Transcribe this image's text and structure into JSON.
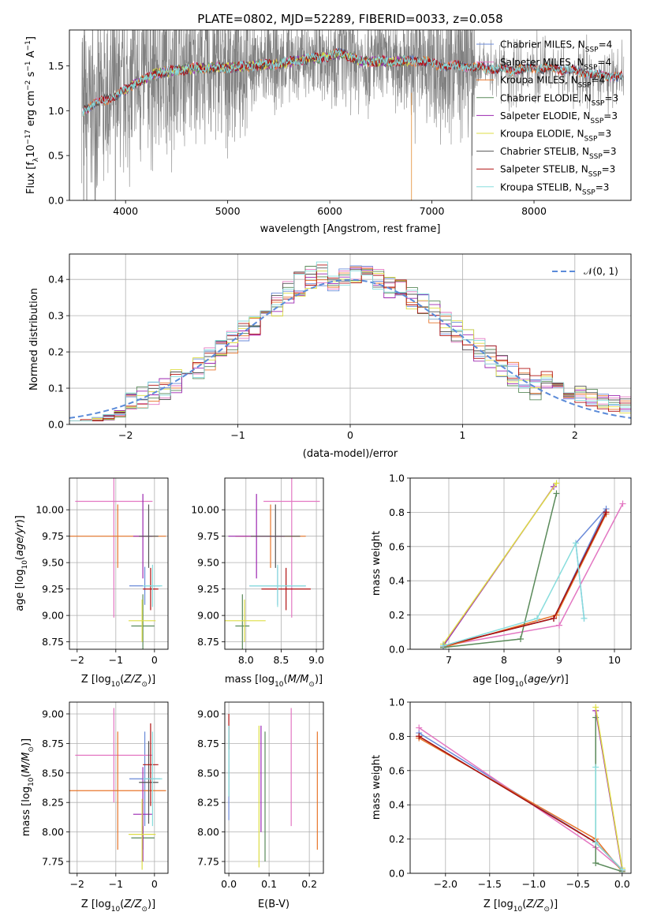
{
  "title": "PLATE=0802, MJD=52289, FIBERID=0033, z=0.058",
  "colors": {
    "Chabrier MILES": "#6a8ad8",
    "Salpeter MILES": "#e377c2",
    "Kroupa MILES": "#e8762b",
    "Chabrier ELODIE": "#5a8a5a",
    "Salpeter ELODIE": "#9c27b0",
    "Kroupa ELODIE": "#dddd44",
    "Chabrier STELIB": "#555555",
    "Salpeter STELIB": "#b01010",
    "Kroupa STELIB": "#88dddd",
    "data": "#808080",
    "gauss": "#5b8bd9"
  },
  "legend_entries": [
    "Chabrier MILES, N_SSP=4",
    "Salpeter MILES, N_SSP=4",
    "Kroupa MILES, N_SSP=4",
    "Chabrier ELODIE, N_SSP=3",
    "Salpeter ELODIE, N_SSP=3",
    "Kroupa ELODIE, N_SSP=3",
    "Chabrier STELIB, N_SSP=3",
    "Salpeter STELIB, N_SSP=3",
    "Kroupa STELIB, N_SSP=3"
  ],
  "chart_data": [
    {
      "id": "spectrum",
      "type": "line",
      "title": "PLATE=0802, MJD=52289, FIBERID=0033, z=0.058",
      "xlabel": "wavelength [Angstrom, rest frame]",
      "ylabel": "Flux [f_λ 10^-17 erg cm^-2 s^-1 A^-1]",
      "xlim": [
        3450,
        8950
      ],
      "ylim": [
        0,
        1.9
      ],
      "xticks": [
        4000,
        5000,
        6000,
        7000,
        8000
      ],
      "yticks": [
        0.0,
        0.5,
        1.0,
        1.5
      ],
      "legend": "right",
      "model_continuum": [
        [
          3580,
          1.0
        ],
        [
          3700,
          1.08
        ],
        [
          3800,
          1.12
        ],
        [
          3950,
          1.2
        ],
        [
          4100,
          1.3
        ],
        [
          4300,
          1.42
        ],
        [
          4500,
          1.45
        ],
        [
          4700,
          1.48
        ],
        [
          5000,
          1.48
        ],
        [
          5200,
          1.5
        ],
        [
          5500,
          1.52
        ],
        [
          5800,
          1.58
        ],
        [
          6000,
          1.6
        ],
        [
          6100,
          1.65
        ],
        [
          6300,
          1.55
        ],
        [
          6600,
          1.55
        ],
        [
          6900,
          1.56
        ],
        [
          7100,
          1.5
        ],
        [
          7300,
          1.5
        ],
        [
          7500,
          1.48
        ],
        [
          7800,
          1.45
        ],
        [
          8000,
          1.48
        ],
        [
          8300,
          1.46
        ],
        [
          8600,
          1.4
        ],
        [
          8800,
          1.38
        ]
      ]
    },
    {
      "id": "residuals",
      "type": "line",
      "xlabel": "(data-model)/error",
      "ylabel": "Normed distribution",
      "xlim": [
        -2.5,
        2.5
      ],
      "ylim": [
        0,
        0.47
      ],
      "xticks": [
        -2,
        -1,
        0,
        1,
        2
      ],
      "yticks": [
        0.0,
        0.1,
        0.2,
        0.3,
        0.4
      ],
      "grid": true,
      "legend": "top-right",
      "legend_label": "N(0,1)"
    },
    {
      "id": "age-vs-Z",
      "type": "scatter",
      "xlabel": "Z [log10(Z/Z⊙)]",
      "ylabel": "age  [log10(age/yr)]",
      "xlim": [
        -2.2,
        0.35
      ],
      "ylim": [
        8.68,
        10.3
      ],
      "xticks": [
        -2,
        -1,
        0
      ],
      "yticks": [
        8.75,
        9.0,
        9.25,
        9.5,
        9.75,
        10.0
      ],
      "grid": true
    },
    {
      "id": "age-vs-mass",
      "type": "scatter",
      "xlabel": "mass [log10(M/M⊙)]",
      "xlim": [
        7.7,
        9.1
      ],
      "ylim": [
        8.68,
        10.3
      ],
      "xticks": [
        8.0,
        8.5,
        9.0
      ],
      "yticks": [
        8.75,
        9.0,
        9.25,
        9.5,
        9.75,
        10.0
      ],
      "grid": true
    },
    {
      "id": "weight-vs-age",
      "type": "line",
      "xlabel": "age  [log10(age/yr)]",
      "ylabel": "mass weight",
      "xlim": [
        6.3,
        10.3
      ],
      "ylim": [
        0,
        1.0
      ],
      "xticks": [
        7,
        8,
        9,
        10
      ],
      "yticks": [
        0.0,
        0.2,
        0.4,
        0.6,
        0.8,
        1.0
      ],
      "grid": true
    },
    {
      "id": "mass-vs-Z",
      "type": "scatter",
      "xlabel": "Z [log10(Z/Z⊙)]",
      "ylabel": "mass [log10(M/M⊙)]",
      "xlim": [
        -2.2,
        0.35
      ],
      "ylim": [
        7.65,
        9.1
      ],
      "xticks": [
        -2,
        -1,
        0
      ],
      "yticks": [
        7.75,
        8.0,
        8.25,
        8.5,
        8.75,
        9.0
      ],
      "grid": true
    },
    {
      "id": "mass-vs-ebv",
      "type": "scatter",
      "xlabel": "E(B-V)",
      "xlim": [
        -0.01,
        0.235
      ],
      "ylim": [
        7.65,
        9.1
      ],
      "xticks": [
        0.0,
        0.1,
        0.2
      ],
      "yticks": [
        7.75,
        8.0,
        8.25,
        8.5,
        8.75,
        9.0
      ],
      "grid": true
    },
    {
      "id": "weight-vs-Z",
      "type": "line",
      "xlabel": "Z [log10(Z/Z⊙)]",
      "ylabel": "mass weight",
      "xlim": [
        -2.4,
        0.1
      ],
      "ylim": [
        0,
        1.0
      ],
      "xticks": [
        -2.0,
        -1.5,
        -1.0,
        -0.5,
        0.0
      ],
      "yticks": [
        0.0,
        0.2,
        0.4,
        0.6,
        0.8,
        1.0
      ],
      "grid": true
    }
  ],
  "models": [
    {
      "name": "Chabrier MILES",
      "mean_Z": -0.25,
      "mean_Z_err": 0.4,
      "mean_age": 9.28,
      "mean_age_err": 0.18,
      "mean_mass": 8.45,
      "mass_err": 0.4,
      "ebv": 0.0,
      "ebv_mass": 8.5,
      "ebv_err": 0.4,
      "age_weights": [
        [
          6.9,
          0.02
        ],
        [
          8.9,
          0.18
        ],
        [
          9.85,
          0.82
        ],
        [
          9.3,
          0.62
        ],
        [
          9.45,
          0.18
        ]
      ],
      "Z_weights": [
        [
          -2.3,
          0.82
        ],
        [
          -0.3,
          0.18
        ],
        [
          0.0,
          0.02
        ]
      ]
    },
    {
      "name": "Salpeter MILES",
      "mean_Z": -1.05,
      "mean_Z_err": 1.0,
      "mean_age": 10.08,
      "mean_age_err": 1.1,
      "mean_mass": 8.65,
      "mass_err": 0.4,
      "ebv": 0.155,
      "ebv_mass": 8.55,
      "ebv_err": 0.5,
      "age_weights": [
        [
          6.9,
          0.02
        ],
        [
          9.0,
          0.14
        ],
        [
          10.15,
          0.85
        ]
      ],
      "Z_weights": [
        [
          -2.3,
          0.85
        ],
        [
          -0.3,
          0.15
        ],
        [
          0.0,
          0.02
        ]
      ]
    },
    {
      "name": "Kroupa MILES",
      "mean_Z": -0.95,
      "mean_Z_err": 1.25,
      "mean_age": 9.75,
      "mean_age_err": 0.3,
      "mean_mass": 8.35,
      "mass_err": 0.5,
      "ebv": 0.22,
      "ebv_mass": 8.35,
      "ebv_err": 0.5,
      "age_weights": [
        [
          6.9,
          0.01
        ],
        [
          8.95,
          0.2
        ],
        [
          9.85,
          0.79
        ]
      ],
      "Z_weights": [
        [
          -2.3,
          0.79
        ],
        [
          -0.3,
          0.2
        ],
        [
          0.0,
          0.01
        ]
      ]
    },
    {
      "name": "Chabrier ELODIE",
      "mean_Z": -0.3,
      "mean_Z_err": 0.3,
      "mean_age": 8.9,
      "mean_age_err": 0.3,
      "mean_mass": 7.95,
      "mass_err": 0.1,
      "ebv": 0.09,
      "ebv_mass": 8.3,
      "ebv_err": 0.55,
      "age_weights": [
        [
          6.9,
          0.01
        ],
        [
          8.3,
          0.06
        ],
        [
          8.95,
          0.91
        ]
      ],
      "Z_weights": [
        [
          -0.3,
          0.91
        ],
        [
          -0.3,
          0.06
        ],
        [
          0.0,
          0.01
        ]
      ]
    },
    {
      "name": "Salpeter ELODIE",
      "mean_Z": -0.3,
      "mean_Z_err": 0.25,
      "mean_age": 9.75,
      "mean_age_err": 0.4,
      "mean_mass": 8.15,
      "mass_err": 0.4,
      "ebv": 0.08,
      "ebv_mass": 8.45,
      "ebv_err": 0.45,
      "age_weights": [
        [
          6.9,
          0.02
        ],
        [
          8.9,
          0.95
        ]
      ],
      "Z_weights": [
        [
          -0.3,
          0.95
        ],
        [
          0.0,
          0.02
        ]
      ]
    },
    {
      "name": "Kroupa ELODIE",
      "mean_Z": -0.32,
      "mean_Z_err": 0.35,
      "mean_age": 8.95,
      "mean_age_err": 0.2,
      "mean_mass": 7.98,
      "mass_err": 0.3,
      "ebv": 0.075,
      "ebv_mass": 8.3,
      "ebv_err": 0.6,
      "age_weights": [
        [
          6.9,
          0.03
        ],
        [
          8.95,
          0.97
        ]
      ],
      "Z_weights": [
        [
          -0.3,
          0.97
        ],
        [
          0.0,
          0.03
        ]
      ]
    },
    {
      "name": "Chabrier STELIB",
      "mean_Z": -0.15,
      "mean_Z_err": 0.25,
      "mean_age": 9.75,
      "mean_age_err": 0.3,
      "mean_mass": 8.42,
      "mass_err": 0.35,
      "ebv": 0.0,
      "ebv_mass": 8.6,
      "ebv_err": 0.3,
      "age_weights": [
        [
          6.9,
          0.02
        ],
        [
          8.9,
          0.18
        ],
        [
          9.85,
          0.8
        ]
      ],
      "Z_weights": [
        [
          -2.3,
          0.8
        ],
        [
          -0.3,
          0.18
        ],
        [
          0.0,
          0.02
        ]
      ]
    },
    {
      "name": "Salpeter STELIB",
      "mean_Z": -0.1,
      "mean_Z_err": 0.2,
      "mean_age": 9.25,
      "mean_age_err": 0.2,
      "mean_mass": 8.57,
      "mass_err": 0.35,
      "ebv": 0.0,
      "ebv_mass": 8.85,
      "ebv_err": 0.15,
      "age_weights": [
        [
          6.9,
          0.02
        ],
        [
          8.9,
          0.18
        ],
        [
          9.85,
          0.8
        ]
      ],
      "Z_weights": [
        [
          -2.3,
          0.8
        ],
        [
          -0.3,
          0.18
        ],
        [
          0.0,
          0.02
        ]
      ]
    },
    {
      "name": "Kroupa STELIB",
      "mean_Z": -0.05,
      "mean_Z_err": 0.25,
      "mean_age": 9.28,
      "mean_age_err": 0.2,
      "mean_mass": 8.45,
      "mass_err": 0.4,
      "ebv": 0.0,
      "ebv_mass": 8.6,
      "ebv_err": 0.3,
      "age_weights": [
        [
          6.9,
          0.02
        ],
        [
          8.6,
          0.18
        ],
        [
          9.3,
          0.62
        ],
        [
          9.45,
          0.18
        ]
      ],
      "Z_weights": [
        [
          -0.3,
          0.62
        ],
        [
          -0.3,
          0.18
        ],
        [
          0.0,
          0.02
        ]
      ]
    }
  ]
}
